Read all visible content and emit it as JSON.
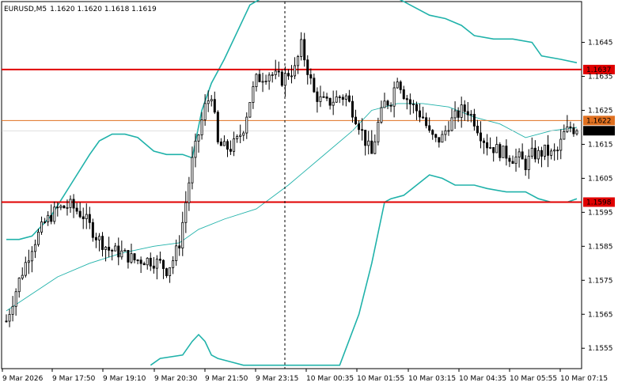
{
  "header": {
    "symbol": "EURUSD,M5",
    "ohlc": "1.1620 1.1620 1.1618 1.1619"
  },
  "chart_data": {
    "type": "candlestick",
    "symbol": "EURUSD",
    "timeframe": "M5",
    "ylim": [
      1.1549,
      1.1657
    ],
    "y_ticks": [
      "1.1645",
      "1.1635",
      "1.1625",
      "1.1615",
      "1.1605",
      "1.1595",
      "1.1585",
      "1.1575",
      "1.1565",
      "1.1555"
    ],
    "x_ticks": [
      "9 Mar 2026",
      "9 Mar 17:50",
      "9 Mar 19:10",
      "9 Mar 20:30",
      "9 Mar 21:50",
      "9 Mar 23:15",
      "10 Mar 00:35",
      "10 Mar 01:55",
      "10 Mar 03:15",
      "10 Mar 04:35",
      "10 Mar 05:55",
      "10 Mar 07:15"
    ],
    "bar_count": 179,
    "current_price": "1.1619",
    "horizontal_lines": [
      {
        "label": "1.1637",
        "value": 1.1637,
        "color": "#e00000",
        "width": 2
      },
      {
        "label": "1.1622",
        "value": 1.1622,
        "color": "#e07020",
        "width": 1
      },
      {
        "label": "1.1598",
        "value": 1.1598,
        "color": "#e00000",
        "width": 2
      }
    ],
    "vertical_marker_tick": "9 Mar 23:15",
    "bollinger_upper": [
      [
        0,
        1.1587
      ],
      [
        4,
        1.1587
      ],
      [
        8,
        1.1588
      ],
      [
        14,
        1.1594
      ],
      [
        20,
        1.1603
      ],
      [
        26,
        1.1612
      ],
      [
        29,
        1.1616
      ],
      [
        33,
        1.1618
      ],
      [
        37,
        1.1618
      ],
      [
        41,
        1.1617
      ],
      [
        46,
        1.1613
      ],
      [
        50,
        1.1612
      ],
      [
        55,
        1.1612
      ],
      [
        58,
        1.1611
      ],
      [
        61,
        1.1625
      ],
      [
        64,
        1.1633
      ],
      [
        68,
        1.164
      ],
      [
        72,
        1.1648
      ],
      [
        76,
        1.1656
      ],
      [
        80,
        1.166
      ],
      [
        122,
        1.1658
      ],
      [
        126,
        1.1656
      ],
      [
        132,
        1.1653
      ],
      [
        137,
        1.1652
      ],
      [
        142,
        1.165
      ],
      [
        146,
        1.1647
      ],
      [
        152,
        1.1646
      ],
      [
        158,
        1.1646
      ],
      [
        164,
        1.1645
      ],
      [
        167,
        1.1641
      ],
      [
        173,
        1.164
      ],
      [
        178,
        1.1639
      ]
    ],
    "bollinger_middle": [
      [
        0,
        1.1566
      ],
      [
        8,
        1.1571
      ],
      [
        16,
        1.1576
      ],
      [
        26,
        1.158
      ],
      [
        36,
        1.1583
      ],
      [
        46,
        1.1585
      ],
      [
        54,
        1.1586
      ],
      [
        60,
        1.159
      ],
      [
        68,
        1.1593
      ],
      [
        78,
        1.1596
      ],
      [
        88,
        1.1603
      ],
      [
        98,
        1.1611
      ],
      [
        108,
        1.1619
      ],
      [
        114,
        1.1625
      ],
      [
        122,
        1.1627
      ],
      [
        130,
        1.1627
      ],
      [
        138,
        1.1626
      ],
      [
        146,
        1.1623
      ],
      [
        154,
        1.1621
      ],
      [
        162,
        1.1617
      ],
      [
        170,
        1.1619
      ],
      [
        178,
        1.162
      ]
    ],
    "bollinger_lower": [
      [
        45,
        1.155
      ],
      [
        48,
        1.1552
      ],
      [
        55,
        1.1553
      ],
      [
        58,
        1.1557
      ],
      [
        60,
        1.1559
      ],
      [
        62,
        1.1557
      ],
      [
        64,
        1.1553
      ],
      [
        66,
        1.1552
      ],
      [
        70,
        1.1551
      ],
      [
        74,
        1.155
      ],
      [
        104,
        1.155
      ],
      [
        110,
        1.1565
      ],
      [
        114,
        1.158
      ],
      [
        118,
        1.1598
      ],
      [
        120,
        1.1599
      ],
      [
        124,
        1.16
      ],
      [
        128,
        1.1603
      ],
      [
        132,
        1.1606
      ],
      [
        136,
        1.1605
      ],
      [
        140,
        1.1603
      ],
      [
        146,
        1.1603
      ],
      [
        150,
        1.1602
      ],
      [
        156,
        1.1601
      ],
      [
        162,
        1.1601
      ],
      [
        166,
        1.1599
      ],
      [
        170,
        1.1598
      ],
      [
        175,
        1.1598
      ],
      [
        178,
        1.1599
      ]
    ],
    "colors": {
      "candle": "#000000",
      "bollinger": "#20b2aa",
      "marker_line": "#000000",
      "price_label_bg": "#000000",
      "price_label_text": "#ffffff"
    }
  }
}
